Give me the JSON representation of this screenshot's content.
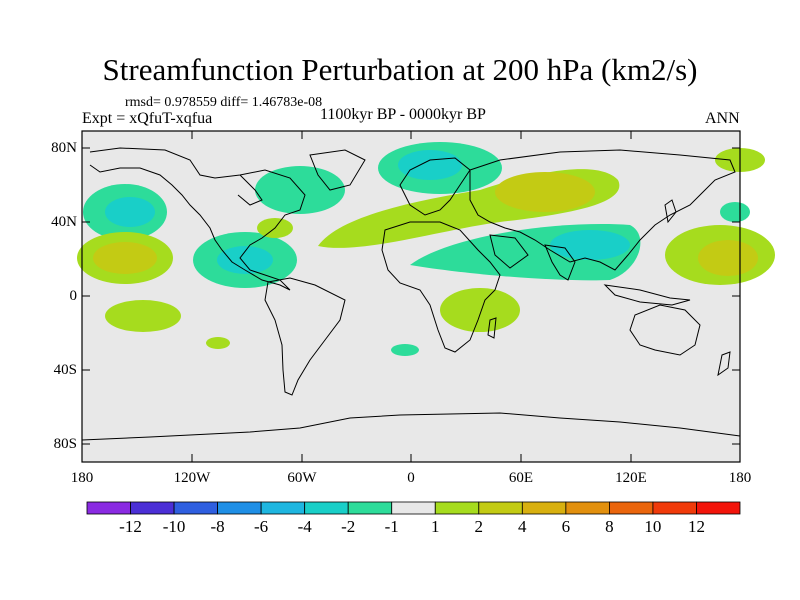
{
  "title": "Streamfunction Perturbation at 200 hPa (km2/s)",
  "stats_text": "rmsd= 0.978559 diff= 1.46783e-08",
  "experiment_text": "Expt = xQfuT-xqfua",
  "period_text": "1100kyr BP - 0000kyr BP",
  "season_text": "ANN",
  "axes": {
    "lat_labels": [
      "80N",
      "40N",
      "0",
      "40S",
      "80S"
    ],
    "lon_labels": [
      "180",
      "120W",
      "60W",
      "0",
      "60E",
      "120E",
      "180"
    ]
  },
  "colorbar": {
    "labels": [
      "-12",
      "-10",
      "-8",
      "-6",
      "-4",
      "-2",
      "-1",
      "1",
      "2",
      "4",
      "6",
      "8",
      "10",
      "12"
    ],
    "colors": [
      "#8a2be2",
      "#4b2fd6",
      "#2f5fe0",
      "#1f8fe6",
      "#1eb6e0",
      "#19cfc8",
      "#2ddc9a",
      "#e8e8e8",
      "#a6dc1e",
      "#c3cb14",
      "#d8b010",
      "#e2900e",
      "#ea650c",
      "#f03a0a",
      "#f2140a"
    ]
  },
  "colors": {
    "land_bg": "#e8e8e8",
    "coast": "#000000"
  }
}
